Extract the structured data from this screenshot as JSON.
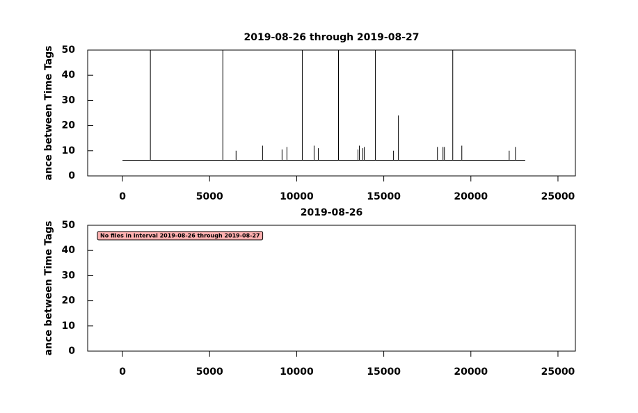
{
  "chart_data": [
    {
      "type": "line",
      "title": "2019-08-26 through 2019-08-27",
      "y_label": "ance between Time Tags",
      "xlim": [
        -2000,
        26000
      ],
      "xticks": [
        0,
        5000,
        10000,
        15000,
        20000,
        25000
      ],
      "ylim": [
        0,
        50
      ],
      "yticks": [
        0,
        10,
        20,
        30,
        40,
        50
      ],
      "series": [
        {
          "color": "#000000",
          "x": [
            0,
            1600,
            1600,
            1600,
            5760,
            5760,
            5760,
            6520,
            6520,
            6520,
            8040,
            8040,
            8040,
            9160,
            9160,
            9160,
            9440,
            9440,
            9440,
            10320,
            10320,
            10320,
            11000,
            11000,
            11000,
            11240,
            11240,
            11240,
            12400,
            12400,
            12400,
            13520,
            13520,
            13520,
            13600,
            13600,
            13600,
            13800,
            13800,
            13800,
            13880,
            13880,
            13880,
            14520,
            14520,
            14520,
            15560,
            15560,
            15560,
            15840,
            15840,
            15840,
            18080,
            18080,
            18080,
            18400,
            18400,
            18400,
            18480,
            18480,
            18480,
            18960,
            18960,
            18960,
            19480,
            19480,
            19480,
            22200,
            22200,
            22200,
            22560,
            22560,
            22560,
            23120
          ],
          "values": [
            6.2,
            6.2,
            50,
            6.2,
            6.2,
            50,
            6.2,
            6.2,
            10,
            6.2,
            6.2,
            12,
            6.2,
            6.2,
            10.5,
            6.2,
            6.2,
            11.5,
            6.2,
            6.2,
            50,
            6.2,
            6.2,
            12,
            6.2,
            6.2,
            11,
            6.2,
            6.2,
            50,
            6.2,
            6.2,
            10.5,
            6.2,
            6.2,
            12,
            6.2,
            6.2,
            11,
            6.2,
            6.2,
            11.5,
            6.2,
            6.2,
            50,
            6.2,
            6.2,
            10,
            6.2,
            6.2,
            24,
            6.2,
            6.2,
            11.5,
            6.2,
            6.2,
            11.5,
            6.2,
            6.2,
            11.5,
            6.2,
            6.2,
            50,
            6.2,
            6.2,
            12,
            6.2,
            6.2,
            10,
            6.2,
            6.2,
            11.5,
            6.2,
            6.2
          ]
        }
      ]
    },
    {
      "type": "line",
      "title": "2019-08-26",
      "y_label": "ance between Time Tags",
      "xlim": [
        -2000,
        26000
      ],
      "xticks": [
        0,
        5000,
        10000,
        15000,
        20000,
        25000
      ],
      "ylim": [
        0,
        50
      ],
      "yticks": [
        0,
        10,
        20,
        30,
        40,
        50
      ],
      "annotation": "No files in interval 2019-08-26 through 2019-08-27",
      "annotation_color": "#ffb0b0",
      "series": []
    }
  ]
}
